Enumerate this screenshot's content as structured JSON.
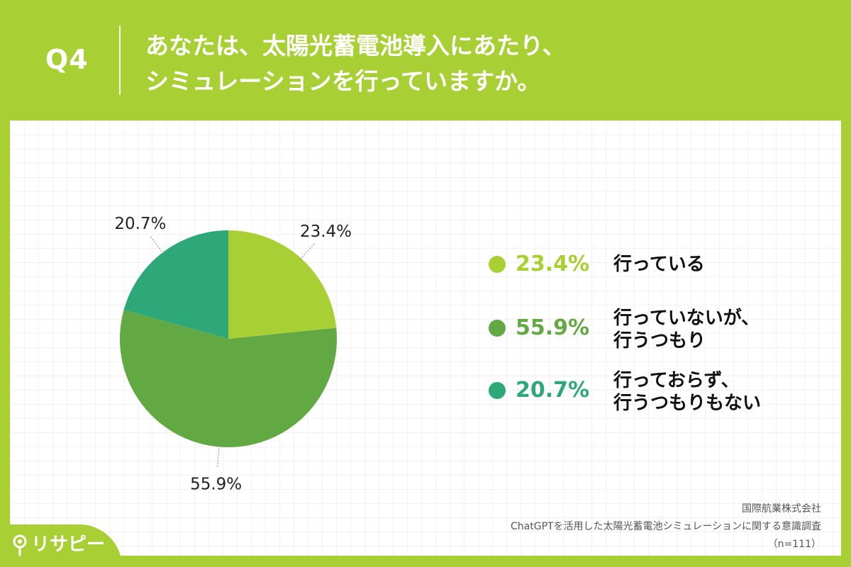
{
  "header": {
    "q_number": "Q4",
    "question_line1": "あなたは、太陽光蓄電池導入にあたり、",
    "question_line2": "シミュレーションを行っていますか。"
  },
  "chart_data": {
    "type": "pie",
    "slices": [
      {
        "label": "行っている",
        "value": 23.4,
        "value_label": "23.4%",
        "color": "#a8cf33"
      },
      {
        "label": "行っていないが、\n行うつもり",
        "value": 55.9,
        "value_label": "55.9%",
        "color": "#62a843"
      },
      {
        "label": "行っておらず、\n行うつもりもない",
        "value": 20.7,
        "value_label": "20.7%",
        "color": "#2ea878"
      }
    ],
    "start_angle_deg": 0,
    "direction": "clockwise",
    "legend_position": "right"
  },
  "source": {
    "company": "国際航業株式会社",
    "survey": "ChatGPTを活用した太陽光蓄電池シミュレーションに関する意識調査",
    "sample": "（n=111）"
  },
  "logo": {
    "text": "リサピー",
    "icon": "pin-icon"
  }
}
